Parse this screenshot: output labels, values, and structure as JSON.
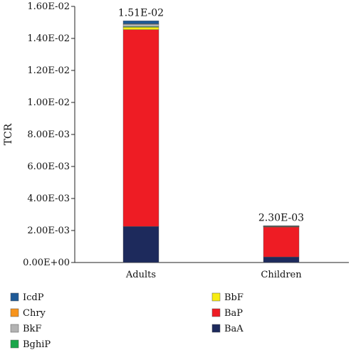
{
  "chart_data": {
    "type": "bar",
    "stacked": true,
    "ylabel": "TCR",
    "xlabel": "",
    "ylim": [
      0,
      0.016
    ],
    "y_ticks": [
      0,
      0.002,
      0.004,
      0.006,
      0.008,
      0.01,
      0.012,
      0.014,
      0.016
    ],
    "y_tick_labels": [
      "0.00E+00",
      "2.00E-03",
      "4.00E-03",
      "6.00E-03",
      "8.00E-03",
      "1.00E-02",
      "1.20E-02",
      "1.40E-02",
      "1.60E-02"
    ],
    "categories": [
      "Adults",
      "Children"
    ],
    "totals": [
      0.0151,
      0.0023
    ],
    "total_labels": [
      "1.51E-02",
      "2.30E-03"
    ],
    "series": [
      {
        "name": "BaA",
        "color": "#1d2a5c",
        "values": [
          0.00225,
          0.00035
        ]
      },
      {
        "name": "BaP",
        "color": "#ee1c24",
        "values": [
          0.0123,
          0.00187
        ]
      },
      {
        "name": "BbF",
        "color": "#f7ec13",
        "values": [
          0.00015,
          2.5e-05
        ]
      },
      {
        "name": "BghiP",
        "color": "#1aa64a",
        "values": [
          4e-05,
          5e-06
        ]
      },
      {
        "name": "BkF",
        "color": "#b3b3b3",
        "values": [
          0.00015,
          2e-05
        ]
      },
      {
        "name": "Chry",
        "color": "#f7941d",
        "values": [
          2e-05,
          5e-06
        ]
      },
      {
        "name": "IcdP",
        "color": "#1f5a96",
        "values": [
          0.00019,
          2.5e-05
        ]
      }
    ],
    "legend": {
      "placement": "bottom-left",
      "columns": [
        [
          "IcdP",
          "Chry",
          "BkF",
          "BghiP"
        ],
        [
          "BbF",
          "BaP",
          "BaA"
        ]
      ]
    },
    "grid": false
  }
}
